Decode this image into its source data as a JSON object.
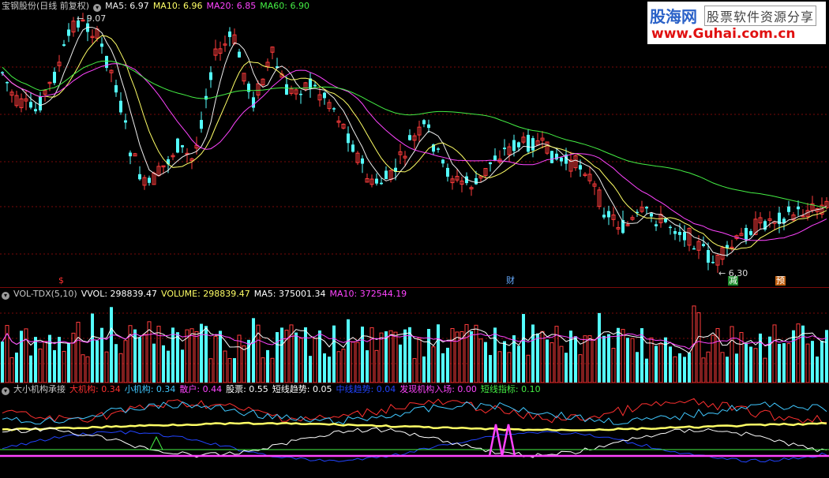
{
  "price_panel": {
    "title": "宝钢股份(日线 前复权)",
    "ma": [
      {
        "label": "MA5: 6.97",
        "color": "#f0f0f0"
      },
      {
        "label": "MA10: 6.96",
        "color": "#ffff66"
      },
      {
        "label": "MA20: 6.85",
        "color": "#ff44ff"
      },
      {
        "label": "MA60: 6.90",
        "color": "#44ee44"
      }
    ],
    "high_label": "9.07",
    "low_label": "6.30",
    "markers": [
      {
        "text": "$",
        "color": "#ff3030"
      },
      {
        "text": "财",
        "color": "#66aaff"
      },
      {
        "text": "减",
        "color": "#ffffff",
        "bg": "#1a8a2a"
      },
      {
        "text": "预",
        "color": "#ffffff",
        "bg": "#c06010"
      }
    ]
  },
  "volume_panel": {
    "title": "VOL-TDX(5,10)",
    "items": [
      {
        "label": "VVOL: 298839.47",
        "color": "#ffffff"
      },
      {
        "label": "VOLUME: 298839.47",
        "color": "#ffff66"
      },
      {
        "label": "MA5: 375001.34",
        "color": "#ffffff"
      },
      {
        "label": "MA10: 372544.19",
        "color": "#ff44ff"
      }
    ]
  },
  "indicator_panel": {
    "title": "大小机构承接",
    "items": [
      {
        "label": "大机构: 0.34",
        "color": "#ff3030"
      },
      {
        "label": "小机构: 0.34",
        "color": "#40c8ff"
      },
      {
        "label": "散户: 0.44",
        "color": "#ff44ff"
      },
      {
        "label": "股票: 0.55",
        "color": "#ffffff"
      },
      {
        "label": "短线趋势: 0.05",
        "color": "#ffffff"
      },
      {
        "label": "中线趋势: 0.04",
        "color": "#2244ff"
      },
      {
        "label": "发现机构入场: 0.00",
        "color": "#ff44ff"
      },
      {
        "label": "短线指标: 0.10",
        "color": "#44ee44"
      }
    ]
  },
  "watermark": {
    "brand": "股海网",
    "slogan": "股票软件资源分享",
    "url": "www.Guhai.com.cn"
  },
  "colors": {
    "up": "#ff3c3c",
    "down": "#54ffff",
    "grid": "#7a0a0a"
  }
}
